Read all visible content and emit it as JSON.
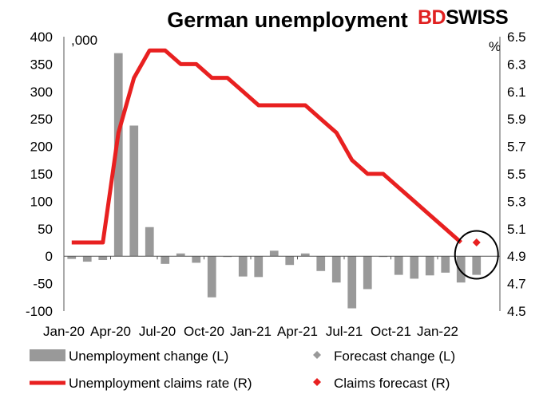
{
  "chart_data": {
    "type": "bar+line",
    "title": "German unemployment",
    "logo": {
      "part1": "BD",
      "part2": "SWISS"
    },
    "left_axis": {
      "unit": ",000",
      "ylim": [
        -100,
        400
      ],
      "ticks": [
        "400",
        "350",
        "300",
        "250",
        "200",
        "150",
        "100",
        "50",
        "0",
        "-50",
        "-100"
      ]
    },
    "right_axis": {
      "unit": "%",
      "ylim": [
        4.5,
        6.5
      ],
      "ticks": [
        "6.5",
        "6.3",
        "6.1",
        "5.9",
        "5.7",
        "5.5",
        "5.3",
        "5.1",
        "4.9",
        "4.7",
        "4.5"
      ]
    },
    "x_tick_labels": [
      "Jan-20",
      "Apr-20",
      "Jul-20",
      "Oct-20",
      "Jan-21",
      "Apr-21",
      "Jul-21",
      "Oct-21",
      "Jan-22"
    ],
    "months": [
      "Jan-20",
      "Feb-20",
      "Mar-20",
      "Apr-20",
      "May-20",
      "Jun-20",
      "Jul-20",
      "Aug-20",
      "Sep-20",
      "Oct-20",
      "Nov-20",
      "Dec-20",
      "Jan-21",
      "Feb-21",
      "Mar-21",
      "Apr-21",
      "May-21",
      "Jun-21",
      "Jul-21",
      "Aug-21",
      "Sep-21",
      "Oct-21",
      "Nov-21",
      "Dec-21",
      "Jan-22",
      "Feb-22",
      "Mar-22",
      "Apr-22"
    ],
    "series": [
      {
        "name": "Unemployment change (L)",
        "type": "bar",
        "axis": "left",
        "color": "#999999",
        "values": [
          -5,
          -10,
          -7,
          370,
          238,
          53,
          -14,
          5,
          -12,
          -75,
          -1,
          -37,
          -38,
          10,
          -16,
          5,
          -27,
          -48,
          -95,
          -60,
          -1,
          -34,
          -41,
          -35,
          -30,
          -48,
          -34,
          null
        ]
      },
      {
        "name": "Unemployment claims rate (R)",
        "type": "line",
        "axis": "right",
        "color": "#e82020",
        "values": [
          5.0,
          5.0,
          5.0,
          5.8,
          6.2,
          6.4,
          6.4,
          6.3,
          6.3,
          6.2,
          6.2,
          6.1,
          6.0,
          6.0,
          6.0,
          6.0,
          5.9,
          5.8,
          5.6,
          5.5,
          5.5,
          5.4,
          5.3,
          5.2,
          5.1,
          5.0,
          null,
          null
        ]
      },
      {
        "name": "Forecast change (L)",
        "type": "scatter",
        "axis": "left",
        "color": "#999999",
        "values": [
          null,
          null,
          null,
          null,
          null,
          null,
          null,
          null,
          null,
          null,
          null,
          null,
          null,
          null,
          null,
          null,
          null,
          null,
          null,
          null,
          null,
          null,
          null,
          null,
          null,
          null,
          -20,
          null
        ]
      },
      {
        "name": "Claims forecast (R)",
        "type": "scatter",
        "axis": "right",
        "color": "#e82020",
        "values": [
          null,
          null,
          null,
          null,
          null,
          null,
          null,
          null,
          null,
          null,
          null,
          null,
          null,
          null,
          null,
          null,
          null,
          null,
          null,
          null,
          null,
          null,
          null,
          null,
          null,
          null,
          5.0,
          null
        ]
      }
    ],
    "legend": {
      "placement": "bottom",
      "items": [
        {
          "label": "Unemployment change (L)",
          "symbol": "bar",
          "color": "#999999"
        },
        {
          "label": "Forecast change (L)",
          "symbol": "diamond",
          "color": "#999999"
        },
        {
          "label": "Unemployment claims rate (R)",
          "symbol": "line",
          "color": "#e82020"
        },
        {
          "label": "Claims forecast (R)",
          "symbol": "diamond",
          "color": "#e82020"
        }
      ]
    },
    "annotation": "circle around forecast points",
    "grid": false
  }
}
